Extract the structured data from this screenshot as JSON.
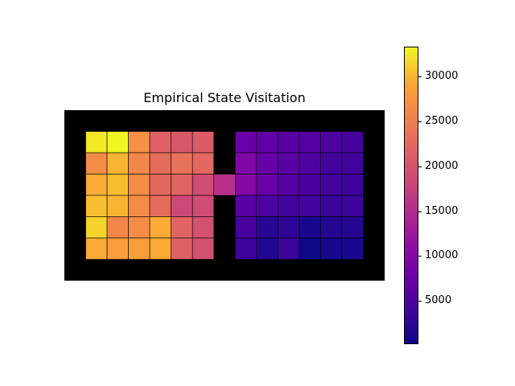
{
  "chart_data": {
    "type": "heatmap",
    "title": "Empirical State Visitation",
    "xlabel": "",
    "ylabel": "",
    "colormap": "plasma",
    "background_color": "#000000",
    "grid_size": {
      "rows": 8,
      "cols": 15
    },
    "vmin": 200,
    "vmax": 33300,
    "left_room": {
      "rows": [
        1,
        2,
        3,
        4,
        5,
        6
      ],
      "cols": [
        1,
        2,
        3,
        4,
        5,
        6
      ],
      "values": [
        [
          32500,
          33100,
          27000,
          21500,
          20500,
          21000
        ],
        [
          26500,
          30000,
          26000,
          23000,
          23500,
          22500
        ],
        [
          29500,
          30500,
          26500,
          22500,
          22000,
          19000
        ],
        [
          30500,
          30000,
          26500,
          23000,
          18500,
          19000
        ],
        [
          31500,
          26000,
          26500,
          29500,
          22000,
          19500
        ],
        [
          29500,
          28500,
          28500,
          29500,
          21500,
          19500
        ]
      ]
    },
    "doorway": {
      "row": 3,
      "col": 7,
      "value": 15500
    },
    "right_room": {
      "rows": [
        1,
        2,
        3,
        4,
        5,
        6
      ],
      "cols": [
        8,
        9,
        10,
        11,
        12,
        13
      ],
      "values": [
        [
          7500,
          6500,
          6000,
          5500,
          5000,
          4500
        ],
        [
          9500,
          7000,
          6000,
          5000,
          4000,
          3800
        ],
        [
          10000,
          7500,
          5500,
          4500,
          4000,
          3500
        ],
        [
          6000,
          5000,
          4000,
          4000,
          3500,
          3500
        ],
        [
          4500,
          2000,
          2500,
          1000,
          1800,
          1800
        ],
        [
          3500,
          1500,
          3500,
          200,
          1000,
          1200
        ]
      ]
    },
    "colorbar": {
      "ticks": [
        5000,
        10000,
        15000,
        20000,
        25000,
        30000
      ],
      "tick_labels": [
        "5000",
        "10000",
        "15000",
        "20000",
        "25000",
        "30000"
      ]
    }
  }
}
